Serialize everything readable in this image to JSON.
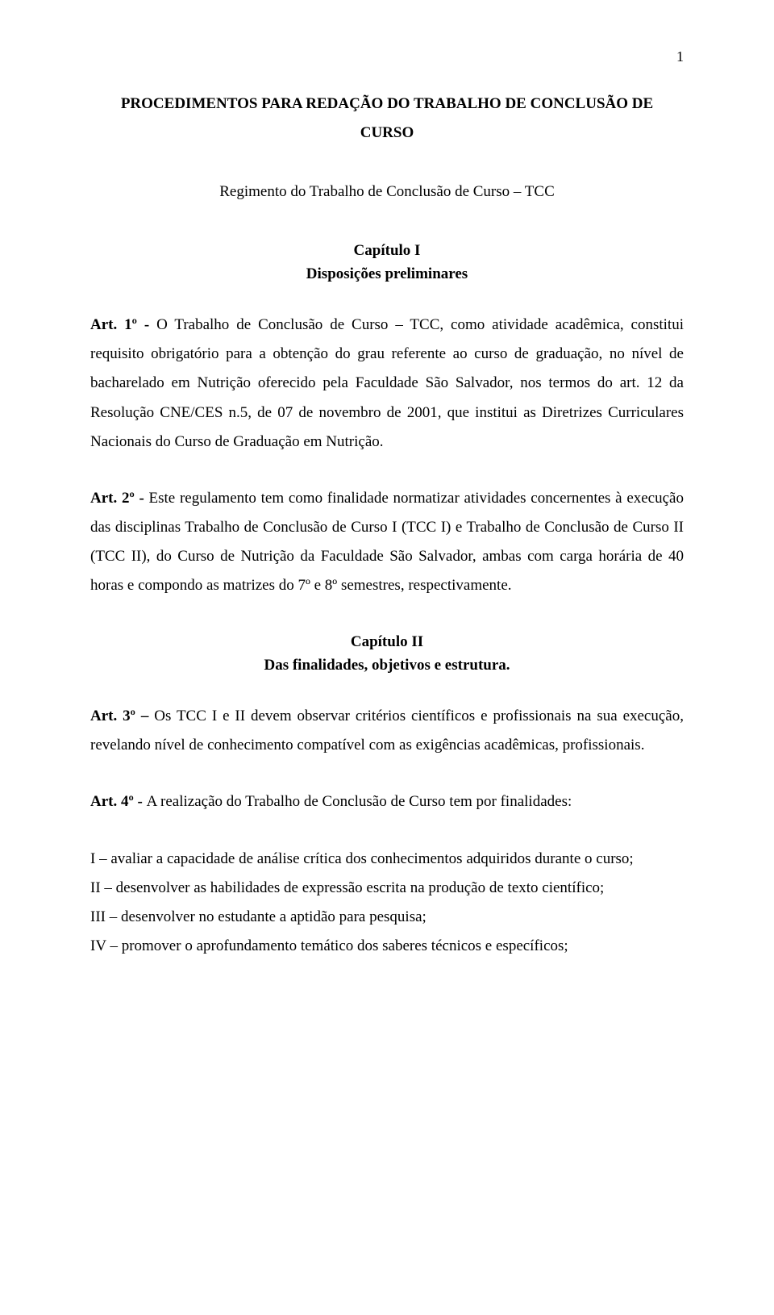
{
  "page_number": "1",
  "title_line1": "PROCEDIMENTOS PARA REDAÇÃO DO TRABALHO DE CONCLUSÃO DE",
  "title_line2": "CURSO",
  "subtitle": "Regimento do Trabalho de Conclusão de Curso – TCC",
  "chapter1": "Capítulo I",
  "chapter1_desc": "Disposições preliminares",
  "art1_label": "Art. 1º - ",
  "art1_text": "O Trabalho de Conclusão de Curso – TCC, como atividade acadêmica, constitui requisito obrigatório para a obtenção do grau referente ao curso de graduação, no nível de bacharelado em Nutrição oferecido pela Faculdade São Salvador, nos termos do art. 12 da Resolução CNE/CES n.5, de 07 de novembro de 2001, que institui as Diretrizes Curriculares Nacionais do Curso de Graduação em Nutrição.",
  "art2_label": "Art. 2º - ",
  "art2_text": "Este regulamento tem como finalidade normatizar atividades concernentes à execução das disciplinas Trabalho de Conclusão de Curso I (TCC I) e Trabalho de Conclusão de Curso II (TCC II), do Curso de Nutrição da Faculdade São Salvador, ambas com carga horária de 40 horas e compondo as matrizes do 7º e 8º semestres, respectivamente.",
  "chapter2": "Capítulo II",
  "chapter2_desc": "Das finalidades, objetivos e estrutura.",
  "art3_label": "Art. 3º – ",
  "art3_text": "Os TCC I e II devem observar critérios científicos e profissionais na sua execução, revelando nível de conhecimento compatível com as exigências acadêmicas, profissionais.",
  "art4_label": "Art. 4º - ",
  "art4_text": "A realização do Trabalho de Conclusão de Curso tem por finalidades:",
  "item1": "I – avaliar a capacidade de análise crítica dos conhecimentos adquiridos durante o curso;",
  "item2": "II – desenvolver as habilidades de expressão escrita na produção de texto científico;",
  "item3": "III – desenvolver no estudante a aptidão para pesquisa;",
  "item4": "IV – promover o aprofundamento temático dos saberes técnicos e específicos;"
}
